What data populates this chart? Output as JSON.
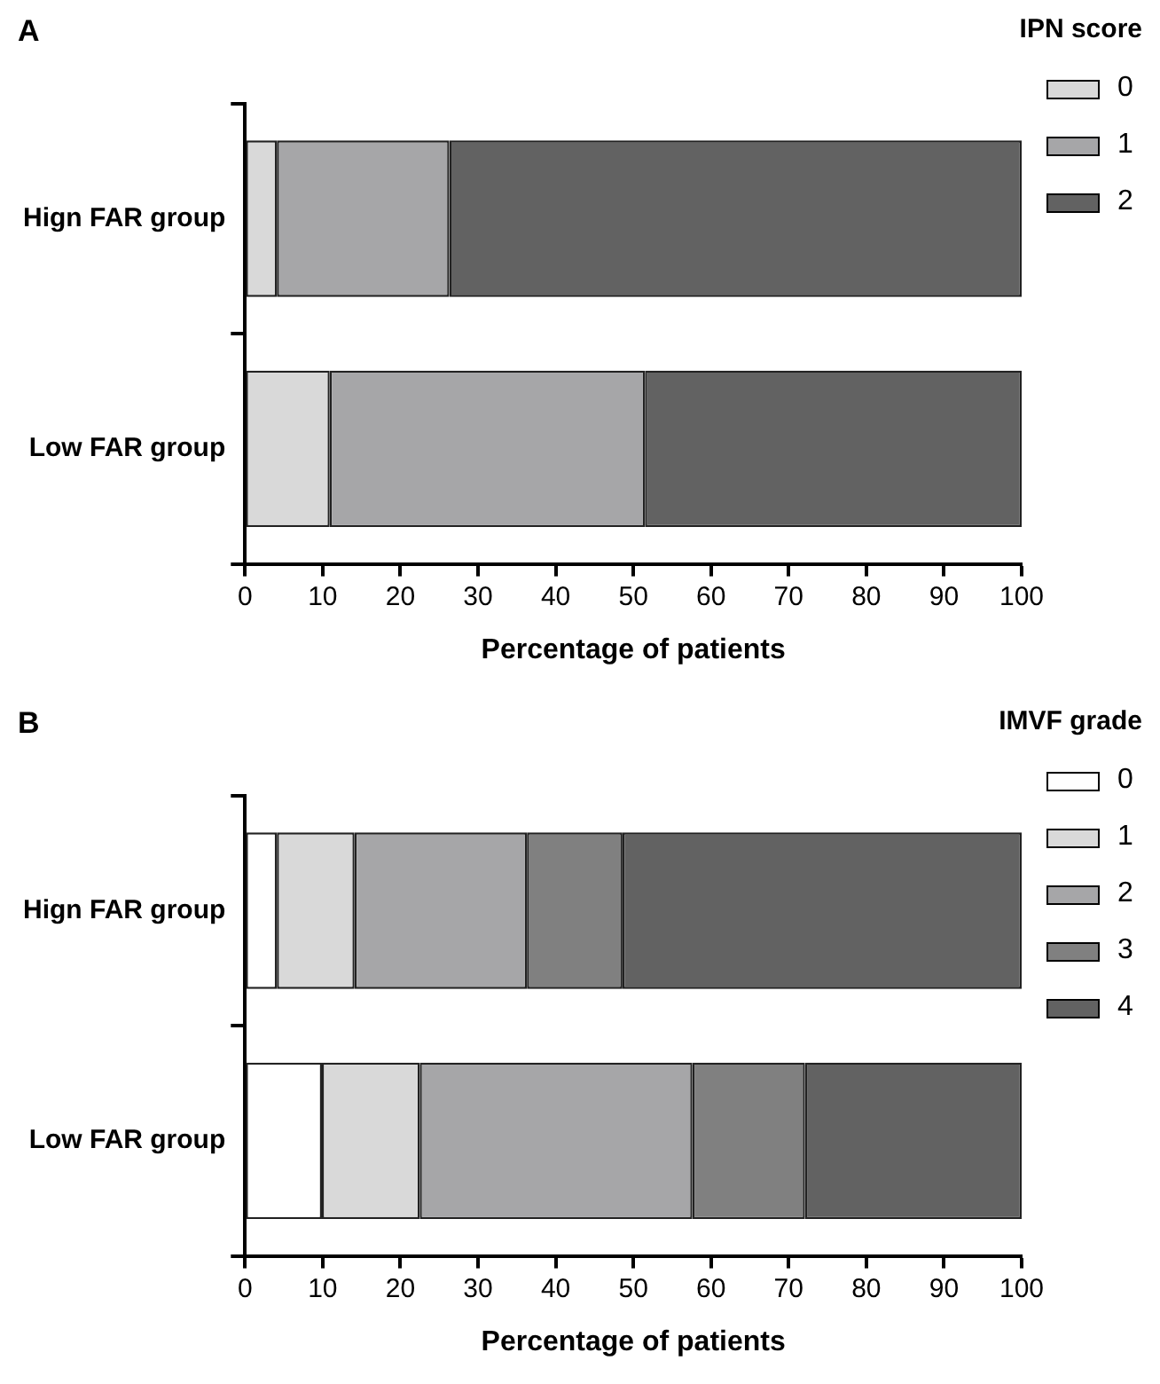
{
  "chart_data": [
    {
      "type": "bar",
      "orientation": "horizontal",
      "stacked": true,
      "title": "A",
      "legend_title": "IPN score",
      "xlabel": "Percentage of patients",
      "categories": [
        "Hign FAR group",
        "Low FAR group"
      ],
      "xlim": [
        0,
        100
      ],
      "xticks": [
        0,
        10,
        20,
        30,
        40,
        50,
        60,
        70,
        80,
        90,
        100
      ],
      "grid": false,
      "legend": "right",
      "series": [
        {
          "name": "0",
          "color": "#d9d9d9",
          "values": [
            4.1,
            10.9
          ]
        },
        {
          "name": "1",
          "color": "#a6a6a8",
          "values": [
            22.2,
            40.6
          ]
        },
        {
          "name": "2",
          "color": "#626262",
          "values": [
            73.7,
            48.5
          ]
        }
      ]
    },
    {
      "type": "bar",
      "orientation": "horizontal",
      "stacked": true,
      "title": "B",
      "legend_title": "IMVF grade",
      "xlabel": "Percentage of patients",
      "categories": [
        "Hign FAR group",
        "Low FAR group"
      ],
      "xlim": [
        0,
        100
      ],
      "xticks": [
        0,
        10,
        20,
        30,
        40,
        50,
        60,
        70,
        80,
        90,
        100
      ],
      "grid": false,
      "legend": "right",
      "series": [
        {
          "name": "0",
          "color": "#ffffff",
          "values": [
            4.1,
            9.9
          ]
        },
        {
          "name": "1",
          "color": "#d9d9d9",
          "values": [
            10.0,
            12.6
          ]
        },
        {
          "name": "2",
          "color": "#a6a6a8",
          "values": [
            22.2,
            35.1
          ]
        },
        {
          "name": "3",
          "color": "#808080",
          "values": [
            12.3,
            14.5
          ]
        },
        {
          "name": "4",
          "color": "#626262",
          "values": [
            51.4,
            27.9
          ]
        }
      ]
    }
  ]
}
